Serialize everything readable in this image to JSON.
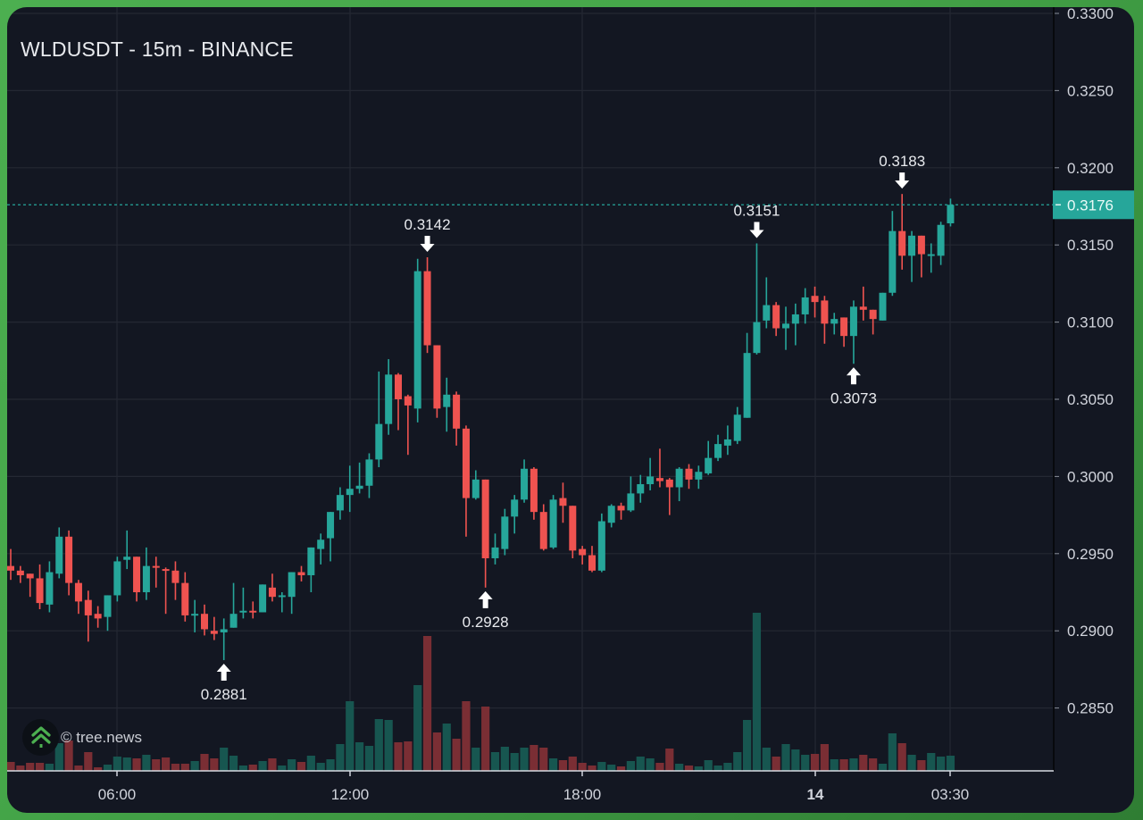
{
  "header": {
    "title": "WLDUSDT - 15m - BINANCE"
  },
  "watermark": {
    "text": "© tree.news",
    "icon": "tree-logo-icon"
  },
  "colors": {
    "background": "#131722",
    "grid": "#242833",
    "up": "#26a69a",
    "down": "#ef5350",
    "volume_up": "#175650",
    "volume_down": "#7a2e34",
    "text": "#d1d4dc",
    "last_price_bg": "#26a69a",
    "frame": "#4caf50"
  },
  "price_axis": {
    "labels": [
      "0.3300",
      "0.3250",
      "0.3200",
      "0.3150",
      "0.3100",
      "0.3050",
      "0.3000",
      "0.2950",
      "0.2900",
      "0.2850"
    ],
    "current_price": "0.3176"
  },
  "time_axis": {
    "labels": [
      {
        "text": "06:00",
        "candle_index": 11,
        "bold": false
      },
      {
        "text": "12:00",
        "candle_index": 35,
        "bold": false
      },
      {
        "text": "18:00",
        "candle_index": 59,
        "bold": false
      },
      {
        "text": "14",
        "candle_index": 83,
        "bold": true
      },
      {
        "text": "03:30",
        "candle_index": 97,
        "bold": false
      }
    ]
  },
  "annotations": [
    {
      "label": "0.3142",
      "candle_index": 43,
      "price": 0.3142,
      "type": "high"
    },
    {
      "label": "0.3151",
      "candle_index": 77,
      "price": 0.3151,
      "type": "high"
    },
    {
      "label": "0.3183",
      "candle_index": 92,
      "price": 0.3183,
      "type": "high"
    },
    {
      "label": "0.2881",
      "candle_index": 22,
      "price": 0.2881,
      "type": "low"
    },
    {
      "label": "0.2928",
      "candle_index": 49,
      "price": 0.2928,
      "type": "low"
    },
    {
      "label": "0.3073",
      "candle_index": 87,
      "price": 0.3073,
      "type": "low"
    }
  ],
  "chart_data": {
    "type": "bar",
    "chart_kind": "candlestick-ohlc-with-volume",
    "title": "WLDUSDT - 15m - BINANCE",
    "xlabel": "",
    "ylabel": "",
    "ylim": [
      0.2809,
      0.33
    ],
    "yticks": [
      0.33,
      0.325,
      0.32,
      0.315,
      0.31,
      0.305,
      0.3,
      0.295,
      0.29,
      0.285
    ],
    "xtick_labels": [
      "06:00",
      "12:00",
      "18:00",
      "14",
      "03:30"
    ],
    "grid": true,
    "interval": "15m",
    "last_price": 0.3176,
    "highs_lows_marked": [
      0.3142,
      0.3151,
      0.3183,
      0.2881,
      0.2928,
      0.3073
    ],
    "columns": [
      "open",
      "high",
      "low",
      "close",
      "volume_rel"
    ],
    "candles": [
      [
        0.2942,
        0.2953,
        0.2933,
        0.2939,
        10
      ],
      [
        0.2939,
        0.2942,
        0.2931,
        0.2936,
        6
      ],
      [
        0.2937,
        0.2937,
        0.2922,
        0.2934,
        9
      ],
      [
        0.2934,
        0.2943,
        0.2914,
        0.2918,
        9
      ],
      [
        0.2917,
        0.2945,
        0.2912,
        0.2938,
        8
      ],
      [
        0.2937,
        0.2967,
        0.2934,
        0.2961,
        31
      ],
      [
        0.2961,
        0.2965,
        0.2923,
        0.2931,
        34
      ],
      [
        0.2931,
        0.2933,
        0.2911,
        0.2919,
        6
      ],
      [
        0.292,
        0.2926,
        0.2893,
        0.291,
        21
      ],
      [
        0.2911,
        0.2916,
        0.2902,
        0.2908,
        4
      ],
      [
        0.2909,
        0.2923,
        0.29,
        0.2923,
        7
      ],
      [
        0.2923,
        0.2948,
        0.2919,
        0.2945,
        16
      ],
      [
        0.2946,
        0.2965,
        0.294,
        0.2948,
        15
      ],
      [
        0.2948,
        0.2948,
        0.2919,
        0.2925,
        14
      ],
      [
        0.2925,
        0.2954,
        0.292,
        0.2942,
        18
      ],
      [
        0.2942,
        0.2948,
        0.2928,
        0.2941,
        13
      ],
      [
        0.294,
        0.2941,
        0.2911,
        0.2939,
        15
      ],
      [
        0.2939,
        0.2945,
        0.292,
        0.2931,
        8
      ],
      [
        0.2931,
        0.2938,
        0.2906,
        0.291,
        8
      ],
      [
        0.291,
        0.292,
        0.2899,
        0.2911,
        11
      ],
      [
        0.2911,
        0.2917,
        0.2897,
        0.2901,
        19
      ],
      [
        0.29,
        0.2909,
        0.2894,
        0.2898,
        14
      ],
      [
        0.2899,
        0.2908,
        0.2881,
        0.2901,
        26
      ],
      [
        0.2902,
        0.2931,
        0.2902,
        0.2911,
        17
      ],
      [
        0.2912,
        0.2928,
        0.2908,
        0.2913,
        6
      ],
      [
        0.2913,
        0.2919,
        0.2908,
        0.2912,
        7
      ],
      [
        0.2912,
        0.293,
        0.2912,
        0.293,
        11
      ],
      [
        0.2928,
        0.2937,
        0.2919,
        0.2922,
        14
      ],
      [
        0.2922,
        0.2925,
        0.2912,
        0.2923,
        6
      ],
      [
        0.2922,
        0.2938,
        0.2911,
        0.2938,
        13
      ],
      [
        0.2938,
        0.2942,
        0.2932,
        0.2936,
        10
      ],
      [
        0.2936,
        0.2954,
        0.2925,
        0.2954,
        17
      ],
      [
        0.2953,
        0.2963,
        0.2943,
        0.2959,
        9
      ],
      [
        0.296,
        0.2977,
        0.2945,
        0.2977,
        13
      ],
      [
        0.2978,
        0.2993,
        0.2972,
        0.2988,
        30
      ],
      [
        0.2988,
        0.3007,
        0.2977,
        0.2992,
        78
      ],
      [
        0.2992,
        0.3009,
        0.2989,
        0.2994,
        32
      ],
      [
        0.2994,
        0.3015,
        0.2986,
        0.3011,
        28
      ],
      [
        0.3011,
        0.3068,
        0.3006,
        0.3034,
        58
      ],
      [
        0.3034,
        0.3076,
        0.3027,
        0.3066,
        57
      ],
      [
        0.3066,
        0.3067,
        0.303,
        0.305,
        32
      ],
      [
        0.3052,
        0.3053,
        0.3014,
        0.3046,
        33
      ],
      [
        0.3044,
        0.3141,
        0.3035,
        0.3133,
        96
      ],
      [
        0.3133,
        0.3142,
        0.308,
        0.3085,
        151
      ],
      [
        0.3085,
        0.3085,
        0.3038,
        0.3044,
        43
      ],
      [
        0.3045,
        0.3064,
        0.3029,
        0.3053,
        53
      ],
      [
        0.3053,
        0.3055,
        0.302,
        0.3031,
        36
      ],
      [
        0.3031,
        0.3033,
        0.2961,
        0.2986,
        78
      ],
      [
        0.2986,
        0.3004,
        0.2985,
        0.2998,
        26
      ],
      [
        0.2998,
        0.2998,
        0.2928,
        0.2947,
        72
      ],
      [
        0.2947,
        0.2963,
        0.2943,
        0.2954,
        21
      ],
      [
        0.2953,
        0.2979,
        0.2949,
        0.2974,
        27
      ],
      [
        0.2974,
        0.2988,
        0.2963,
        0.2985,
        20
      ],
      [
        0.2985,
        0.3011,
        0.2983,
        0.3005,
        26
      ],
      [
        0.3005,
        0.3006,
        0.2972,
        0.2977,
        29
      ],
      [
        0.2977,
        0.2982,
        0.2952,
        0.2953,
        26
      ],
      [
        0.2954,
        0.2988,
        0.2953,
        0.2985,
        14
      ],
      [
        0.2986,
        0.2996,
        0.297,
        0.2981,
        12
      ],
      [
        0.2981,
        0.2981,
        0.2947,
        0.2952,
        16
      ],
      [
        0.2953,
        0.2955,
        0.2943,
        0.2949,
        9
      ],
      [
        0.2949,
        0.2955,
        0.2938,
        0.2939,
        6
      ],
      [
        0.2939,
        0.2976,
        0.2938,
        0.2971,
        10
      ],
      [
        0.297,
        0.2982,
        0.2967,
        0.2981,
        7
      ],
      [
        0.2981,
        0.2983,
        0.2972,
        0.2978,
        5
      ],
      [
        0.2978,
        0.3,
        0.2977,
        0.2989,
        11
      ],
      [
        0.2989,
        0.3001,
        0.2983,
        0.2995,
        16
      ],
      [
        0.2995,
        0.3012,
        0.2991,
        0.3,
        14
      ],
      [
        0.2999,
        0.3018,
        0.2993,
        0.2997,
        9
      ],
      [
        0.2998,
        0.2999,
        0.2975,
        0.2993,
        25
      ],
      [
        0.2993,
        0.3006,
        0.2984,
        0.3005,
        8
      ],
      [
        0.3005,
        0.3008,
        0.2992,
        0.2998,
        6
      ],
      [
        0.2998,
        0.3007,
        0.2992,
        0.3003,
        5
      ],
      [
        0.3002,
        0.3023,
        0.3001,
        0.3012,
        12
      ],
      [
        0.3012,
        0.3027,
        0.301,
        0.3021,
        6
      ],
      [
        0.302,
        0.3033,
        0.3014,
        0.3024,
        9
      ],
      [
        0.3023,
        0.3045,
        0.3021,
        0.304,
        21
      ],
      [
        0.3038,
        0.3093,
        0.3038,
        0.308,
        57
      ],
      [
        0.308,
        0.3151,
        0.3079,
        0.31,
        177
      ],
      [
        0.3101,
        0.3129,
        0.3096,
        0.3111,
        26
      ],
      [
        0.3111,
        0.3113,
        0.3091,
        0.3096,
        16
      ],
      [
        0.3096,
        0.311,
        0.3082,
        0.3099,
        30
      ],
      [
        0.3099,
        0.3112,
        0.3085,
        0.3105,
        24
      ],
      [
        0.3105,
        0.3122,
        0.3099,
        0.3116,
        18
      ],
      [
        0.3117,
        0.3123,
        0.3103,
        0.3113,
        19
      ],
      [
        0.3114,
        0.3117,
        0.3086,
        0.3099,
        30
      ],
      [
        0.3099,
        0.3106,
        0.3092,
        0.3102,
        13
      ],
      [
        0.3103,
        0.3103,
        0.3084,
        0.3091,
        13
      ],
      [
        0.3091,
        0.3114,
        0.3073,
        0.311,
        14
      ],
      [
        0.311,
        0.3123,
        0.3101,
        0.3108,
        18
      ],
      [
        0.3108,
        0.3108,
        0.3092,
        0.3102,
        14
      ],
      [
        0.3101,
        0.3119,
        0.3101,
        0.3119,
        8
      ],
      [
        0.3119,
        0.3172,
        0.3117,
        0.3159,
        42
      ],
      [
        0.3159,
        0.3183,
        0.3134,
        0.3143,
        31
      ],
      [
        0.3143,
        0.3159,
        0.3126,
        0.3156,
        18
      ],
      [
        0.3156,
        0.3156,
        0.3129,
        0.3144,
        12
      ],
      [
        0.3143,
        0.3151,
        0.3132,
        0.3144,
        20
      ],
      [
        0.3143,
        0.3165,
        0.3137,
        0.3163,
        16
      ],
      [
        0.3164,
        0.318,
        0.3162,
        0.3176,
        17
      ]
    ]
  }
}
